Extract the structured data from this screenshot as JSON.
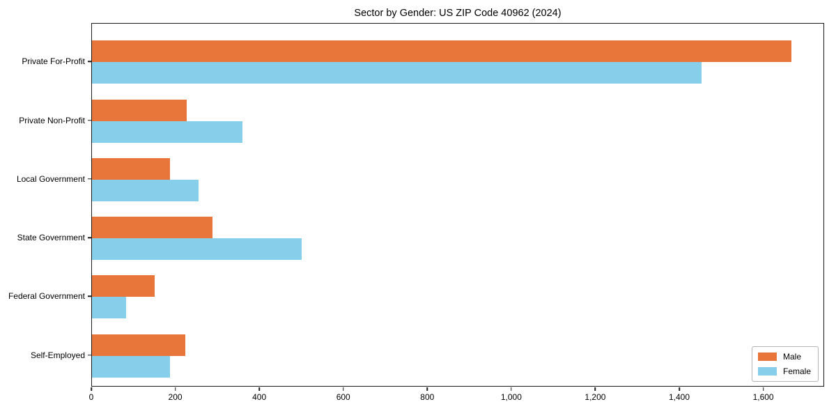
{
  "chart": {
    "title": "Sector by Gender: US ZIP Code 40962 (2024)"
  },
  "chart_data": {
    "type": "bar",
    "orientation": "horizontal",
    "title": "Sector by Gender: US ZIP Code 40962 (2024)",
    "categories": [
      "Private For-Profit",
      "Private Non-Profit",
      "Local Government",
      "State Government",
      "Federal Government",
      "Self-Employed"
    ],
    "series": [
      {
        "name": "Male",
        "color": "#e8763a",
        "values": [
          1666,
          226,
          186,
          287,
          149,
          222
        ]
      },
      {
        "name": "Female",
        "color": "#87ceeb",
        "values": [
          1451,
          358,
          254,
          500,
          81,
          186
        ]
      }
    ],
    "xlabel": "",
    "ylabel": "",
    "xlim": [
      0,
      1745
    ],
    "xticks": [
      0,
      200,
      400,
      600,
      800,
      1000,
      1200,
      1400,
      1600
    ],
    "xtick_labels": [
      "0",
      "200",
      "400",
      "600",
      "800",
      "1,000",
      "1,200",
      "1,400",
      "1,600"
    ],
    "legend_position": "lower right",
    "grid": false,
    "background": "#ffffff",
    "spine_color": "#1a1a1a"
  }
}
